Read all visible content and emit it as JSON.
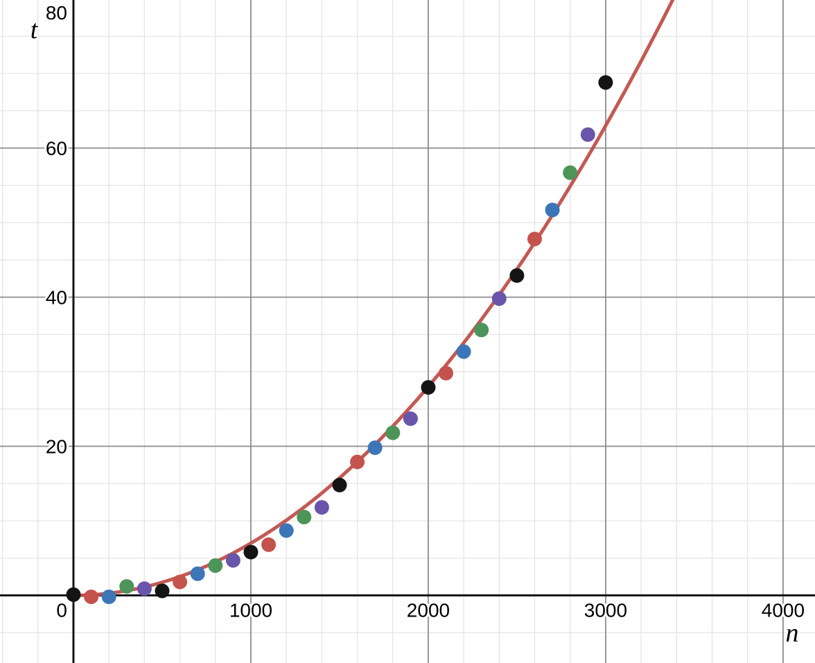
{
  "page": {
    "background": "#ffffff",
    "description": "Desmos-style graph of timing measurements t versus input size n with a quadratic fit curve"
  },
  "chart_data": {
    "type": "scatter",
    "title": "",
    "xlabel": "n",
    "ylabel": "t",
    "xlim": [
      -414,
      4180
    ],
    "ylim": [
      -9.07,
      79.86
    ],
    "x_major_ticks": [
      0,
      1000,
      2000,
      3000,
      4000
    ],
    "y_major_ticks": [
      20,
      40,
      60,
      80
    ],
    "x_minor_step": 200,
    "y_minor_step": 5,
    "grid": true,
    "legend_position": "none",
    "series": [
      {
        "name": "run-1-black",
        "color": "#141414",
        "points": [
          [
            0,
            0.1
          ],
          [
            500,
            0.6
          ],
          [
            1000,
            5.8
          ],
          [
            1500,
            14.8
          ],
          [
            2000,
            27.9
          ],
          [
            2500,
            42.9
          ],
          [
            3000,
            68.8
          ]
        ]
      },
      {
        "name": "run-2-red",
        "color": "#c4534e",
        "points": [
          [
            100,
            -0.2
          ],
          [
            600,
            1.8
          ],
          [
            1100,
            6.8
          ],
          [
            1600,
            17.9
          ],
          [
            2100,
            29.8
          ],
          [
            2600,
            47.8
          ]
        ]
      },
      {
        "name": "run-3-blue",
        "color": "#3c76b8",
        "points": [
          [
            200,
            -0.2
          ],
          [
            700,
            2.9
          ],
          [
            1200,
            8.7
          ],
          [
            1700,
            19.8
          ],
          [
            2200,
            32.7
          ],
          [
            2700,
            51.7
          ]
        ]
      },
      {
        "name": "run-4-green",
        "color": "#4d9459",
        "points": [
          [
            300,
            1.2
          ],
          [
            800,
            4.0
          ],
          [
            1300,
            10.5
          ],
          [
            1800,
            21.8
          ],
          [
            2300,
            35.6
          ],
          [
            2800,
            56.7
          ]
        ]
      },
      {
        "name": "run-5-purple",
        "color": "#6955a9",
        "points": [
          [
            400,
            0.9
          ],
          [
            900,
            4.7
          ],
          [
            1400,
            11.8
          ],
          [
            1900,
            23.7
          ],
          [
            2400,
            39.8
          ],
          [
            2900,
            61.8
          ]
        ]
      }
    ],
    "fit_curve": {
      "model": "power",
      "coefficient": 7e-06,
      "exponent": 2,
      "domain": [
        0,
        3400
      ],
      "color": "#c0504b",
      "stroke_width": 5
    },
    "point_radius": 10.5,
    "style": {
      "minor_grid_color": "#e4e4e4",
      "major_grid_color": "#8c8c8c",
      "axis_color": "#141414",
      "minor_grid_width": 1.3,
      "major_grid_width": 1.8,
      "axis_width": 3,
      "tick_label_color": "#000000"
    }
  }
}
